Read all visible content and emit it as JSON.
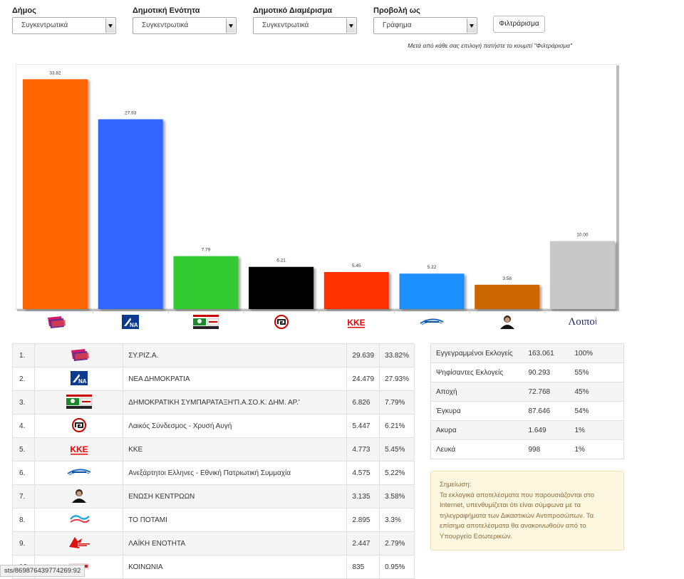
{
  "filters": [
    {
      "label": "Δήμος",
      "value": "Συγκεντρωτικά"
    },
    {
      "label": "Δημοτική Ενότητα",
      "value": "Συγκεντρωτικά"
    },
    {
      "label": "Δημοτικό Διαμέρισμα",
      "value": "Συγκεντρωτικά"
    },
    {
      "label": "Προβολή ως",
      "value": "Γράφημα"
    }
  ],
  "filter_button": "Φιλτράρισμα",
  "hint": "Μετά από κάθε σας επιλογή πατήστε το κουμπί \"Φιλτράρισμα\"",
  "chart_data": {
    "type": "bar",
    "categories": [
      "ΣΥ.ΡΙΖ.Α.",
      "ΝΕΑ ΔΗΜΟΚΡΑΤΙΑ",
      "ΔΗΜΟΚΡΑΤΙΚΗ ΣΥΜΠΑΡΑΤΑΞΗ",
      "Λαικός Σύνδεσμος - Χρυσή Αυγή",
      "ΚΚΕ",
      "Ανεξάρτητοι Ελληνες",
      "ΕΝΩΣΗ ΚΕΝΤΡΩΩΝ",
      "Λοιποί"
    ],
    "values": [
      33.82,
      27.93,
      7.79,
      6.21,
      5.45,
      5.22,
      3.58,
      10.0
    ],
    "value_labels": [
      "33.82",
      "27.93",
      "7.79",
      "6.21",
      "5.45",
      "5.22",
      "3.58",
      "10.00"
    ],
    "colors": [
      "#ff6600",
      "#3366ff",
      "#33cc33",
      "#000000",
      "#ff3300",
      "#1e90ff",
      "#cc6600",
      "#c8c8c8"
    ],
    "category_icons": [
      "syriza-logo",
      "nd-logo",
      "pasok-logo",
      "golden-dawn-logo",
      "kke-logo",
      "anel-logo",
      "leader-photo",
      "loipoi-text"
    ],
    "last_category_label": "Λοιποί",
    "ylim": [
      0,
      35
    ],
    "grid": false
  },
  "results": [
    {
      "rank": "1.",
      "logo": "syriza-logo",
      "name": "ΣΥ.ΡΙΖ.Α.",
      "votes": "29.639",
      "pct": "33.82%"
    },
    {
      "rank": "2.",
      "logo": "nd-logo",
      "name": "ΝΕΑ ΔΗΜΟΚΡΑΤΙΑ",
      "votes": "24.479",
      "pct": "27.93%"
    },
    {
      "rank": "3.",
      "logo": "pasok-logo",
      "name": "ΔΗΜΟΚΡΑΤΙΚΗ ΣΥΜΠΑΡΑΤΑΞΗ'Π.Α.ΣΟ.Κ. ΔΗΜ. ΑΡ.'",
      "votes": "6.826",
      "pct": "7.79%"
    },
    {
      "rank": "4.",
      "logo": "golden-dawn-logo",
      "name": "Λαικός Σύνδεσμος - Χρυσή Αυγή",
      "votes": "5.447",
      "pct": "6.21%"
    },
    {
      "rank": "5.",
      "logo": "kke-logo",
      "name": "ΚΚΕ",
      "votes": "4.773",
      "pct": "5.45%"
    },
    {
      "rank": "6.",
      "logo": "anel-logo",
      "name": "Ανεξάρτητοι Ελληνες - Εθνική Πατριωτική Συμμαχία",
      "votes": "4.575",
      "pct": "5.22%"
    },
    {
      "rank": "7.",
      "logo": "leader-photo",
      "name": "ΕΝΩΣΗ ΚΕΝΤΡΩΩΝ",
      "votes": "3.135",
      "pct": "3.58%"
    },
    {
      "rank": "8.",
      "logo": "potami-logo",
      "name": "ΤΟ ΠΟΤΑΜΙ",
      "votes": "2.895",
      "pct": "3.3%"
    },
    {
      "rank": "9.",
      "logo": "laiki-enotita-logo",
      "name": "ΛΑΪΚΗ ΕΝΟΤΗΤΑ",
      "votes": "2.447",
      "pct": "2.79%"
    },
    {
      "rank": "10.",
      "logo": "koinonia-logo",
      "name": "ΚΟΙΝΩΝΙΑ",
      "votes": "835",
      "pct": "0.95%"
    }
  ],
  "stats": [
    {
      "label": "Εγγεγραμμένοι Εκλογείς",
      "value": "163.061",
      "pct": "100%"
    },
    {
      "label": "Ψηφίσαντες Εκλογείς",
      "value": "90.293",
      "pct": "55%"
    },
    {
      "label": "Αποχή",
      "value": "72.768",
      "pct": "45%"
    },
    {
      "label": "Έγκυρα",
      "value": "87.646",
      "pct": "54%"
    },
    {
      "label": "Ακυρα",
      "value": "1.649",
      "pct": "1%"
    },
    {
      "label": "Λευκά",
      "value": "998",
      "pct": "1%"
    }
  ],
  "note": {
    "title": "Σημείωση:",
    "text": "Τα εκλογικά αποτελέσματα που παρουσιάζονται στο Internet, υπενθυμίζεται ότι είναι σύμφωνα με τα τηλεγραφήματα των Δικαστικών Αντιπροσώπων. Τα επίσημα αποτελέσματα θα ανακοινωθούν από το Υπουργείο Εσωτερικών."
  },
  "status_bar": "sts/869876439774269:92"
}
